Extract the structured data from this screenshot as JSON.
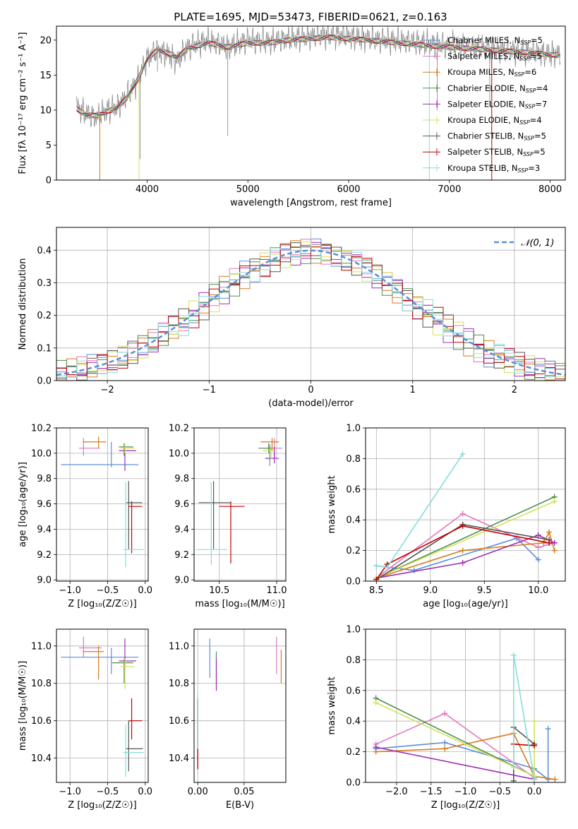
{
  "figure_title": "PLATE=1695, MJD=53473, FIBERID=0621, z=0.163",
  "models": [
    {
      "name": "Chabrier MILES",
      "nssp": "5",
      "color": "#5b8fd6"
    },
    {
      "name": "Salpeter MILES",
      "nssp": "5",
      "color": "#e377c2"
    },
    {
      "name": "Kroupa MILES",
      "nssp": "6",
      "color": "#d87a1e"
    },
    {
      "name": "Chabrier ELODIE",
      "nssp": "4",
      "color": "#4f8f4f"
    },
    {
      "name": "Salpeter ELODIE",
      "nssp": "7",
      "color": "#9b30b0"
    },
    {
      "name": "Kroupa ELODIE",
      "nssp": "4",
      "color": "#d4e15a"
    },
    {
      "name": "Chabrier STELIB",
      "nssp": "5",
      "color": "#555555"
    },
    {
      "name": "Salpeter STELIB",
      "nssp": "5",
      "color": "#c00000"
    },
    {
      "name": "Kroupa STELIB",
      "nssp": "3",
      "color": "#87dcdc"
    }
  ],
  "chart_data": [
    {
      "id": "spectrum",
      "type": "line",
      "xlabel": "wavelength [Angstrom, rest frame]",
      "ylabel": "Flux [fλ 10⁻¹⁷ erg cm⁻² s⁻¹ A⁻¹]",
      "xlim": [
        3100,
        8150
      ],
      "ylim": [
        0,
        22
      ],
      "xticks": [
        4000,
        5000,
        6000,
        7000,
        8000
      ],
      "yticks": [
        0,
        5,
        10,
        15,
        20
      ],
      "grid": false,
      "legend": "right",
      "observed": {
        "color": "#808080",
        "x": [
          3300,
          3400,
          3500,
          3600,
          3700,
          3800,
          3900,
          4000,
          4100,
          4200,
          4300,
          4400,
          4500,
          4600,
          4700,
          4800,
          4900,
          5000,
          5200,
          5400,
          5600,
          5800,
          6000,
          6200,
          6400,
          6600,
          6800,
          7000,
          7200,
          7400,
          7600,
          7800,
          8000,
          8100
        ],
        "y": [
          10.5,
          9.5,
          9.0,
          10.0,
          10.5,
          12.0,
          14.0,
          17.5,
          18.5,
          18.0,
          17.0,
          19.0,
          19.5,
          20.0,
          19.5,
          19.0,
          19.5,
          20.0,
          19.8,
          20.2,
          20.5,
          20.8,
          20.5,
          20.2,
          20.0,
          19.8,
          19.5,
          19.2,
          19.0,
          18.8,
          18.5,
          18.3,
          18.0,
          18.0
        ]
      },
      "model_curve": {
        "x": [
          3300,
          3400,
          3500,
          3600,
          3700,
          3800,
          3900,
          4000,
          4100,
          4200,
          4300,
          4400,
          4500,
          4600,
          4700,
          4800,
          4900,
          5000,
          5200,
          5400,
          5600,
          5800,
          6000,
          6200,
          6400,
          6600,
          6800,
          7000,
          7200,
          7400,
          7600,
          7800,
          8000,
          8100
        ],
        "y": [
          10.2,
          9.3,
          9.2,
          9.8,
          10.3,
          11.8,
          14.2,
          17.2,
          18.6,
          18.2,
          17.5,
          18.8,
          19.2,
          19.6,
          19.3,
          19.0,
          19.3,
          19.6,
          19.6,
          20.0,
          20.2,
          20.4,
          20.2,
          20.0,
          19.7,
          19.5,
          19.2,
          19.0,
          18.8,
          18.6,
          18.4,
          18.2,
          17.9,
          17.9
        ]
      }
    },
    {
      "id": "residuals",
      "type": "line",
      "xlabel": "(data-model)/error",
      "ylabel": "Normed distribution",
      "xlim": [
        -2.5,
        2.5
      ],
      "ylim": [
        0,
        0.47
      ],
      "xticks": [
        -2,
        -1,
        0,
        1,
        2
      ],
      "yticks": [
        0.0,
        0.1,
        0.2,
        0.3,
        0.4
      ],
      "grid": true,
      "legend": "top-right",
      "reference": {
        "label": "𝒩(0, 1)",
        "mean": 0,
        "sigma": 1,
        "color": "#5b8fd6",
        "style": "dashed"
      },
      "bin_width": 0.1
    },
    {
      "id": "age_vs_Z",
      "type": "scatter",
      "xlabel": "Z [log₁₀(Z/Z☉)]",
      "ylabel": "age  [log₁₀(age/yr)]",
      "xlim": [
        -1.18,
        0.04
      ],
      "ylim": [
        8.99,
        10.2
      ],
      "xticks": [
        -1.0,
        -0.5,
        0.0
      ],
      "yticks": [
        9.0,
        9.2,
        9.4,
        9.6,
        9.8,
        10.0,
        10.2
      ],
      "grid": true,
      "points": [
        {
          "x": -0.45,
          "y": 9.91,
          "xlo": -1.12,
          "xhi": -0.09,
          "ylo": 9.89,
          "yhi": 10.09
        },
        {
          "x": -0.82,
          "y": 10.04,
          "xlo": -0.88,
          "xhi": -0.6,
          "ylo": 9.98,
          "yhi": 10.12
        },
        {
          "x": -0.62,
          "y": 10.09,
          "xlo": -0.83,
          "xhi": -0.52,
          "ylo": 10.04,
          "yhi": 10.13
        },
        {
          "x": -0.28,
          "y": 10.05,
          "xlo": -0.35,
          "xhi": -0.16,
          "ylo": 9.98,
          "yhi": 10.08
        },
        {
          "x": -0.27,
          "y": 10.02,
          "xlo": -0.35,
          "xhi": -0.12,
          "ylo": 9.86,
          "yhi": 10.04
        },
        {
          "x": -0.27,
          "y": 10.04,
          "xlo": -0.33,
          "xhi": -0.14,
          "ylo": 10.0,
          "yhi": 10.07
        },
        {
          "x": -0.22,
          "y": 9.61,
          "xlo": -0.25,
          "xhi": -0.04,
          "ylo": 9.24,
          "yhi": 9.78
        },
        {
          "x": -0.18,
          "y": 9.58,
          "xlo": -0.22,
          "xhi": -0.04,
          "ylo": 9.21,
          "yhi": 9.62
        },
        {
          "x": -0.26,
          "y": 9.24,
          "xlo": -0.29,
          "xhi": -0.02,
          "ylo": 9.1,
          "yhi": 9.77
        }
      ]
    },
    {
      "id": "age_vs_mass",
      "type": "scatter",
      "xlabel": "mass [log₁₀(M/M☉)]",
      "ylabel": "",
      "xlim": [
        10.28,
        11.08
      ],
      "ylim": [
        8.99,
        10.2
      ],
      "xticks": [
        10.5,
        11.0
      ],
      "yticks": [
        9.0,
        9.2,
        9.4,
        9.6,
        9.8,
        10.0,
        10.2
      ],
      "grid": true,
      "points": [
        {
          "x": 10.94,
          "y": 9.96,
          "xlo": 10.9,
          "xhi": 10.98,
          "ylo": 9.9,
          "yhi": 10.07
        },
        {
          "x": 10.98,
          "y": 10.04,
          "xlo": 10.88,
          "xhi": 11.05,
          "ylo": 9.96,
          "yhi": 10.12
        },
        {
          "x": 10.96,
          "y": 10.09,
          "xlo": 10.86,
          "xhi": 11.02,
          "ylo": 10.02,
          "yhi": 10.12
        },
        {
          "x": 10.93,
          "y": 10.04,
          "xlo": 10.84,
          "xhi": 10.96,
          "ylo": 10.0,
          "yhi": 10.08
        },
        {
          "x": 10.98,
          "y": 9.96,
          "xlo": 10.9,
          "xhi": 11.02,
          "ylo": 9.92,
          "yhi": 10.05
        },
        {
          "x": 10.95,
          "y": 10.02,
          "xlo": 10.88,
          "xhi": 10.98,
          "ylo": 9.95,
          "yhi": 10.05
        },
        {
          "x": 10.45,
          "y": 9.61,
          "xlo": 10.32,
          "xhi": 10.6,
          "ylo": 9.24,
          "yhi": 9.78
        },
        {
          "x": 10.6,
          "y": 9.58,
          "xlo": 10.5,
          "xhi": 10.72,
          "ylo": 9.13,
          "yhi": 9.62
        },
        {
          "x": 10.43,
          "y": 9.24,
          "xlo": 10.3,
          "xhi": 10.57,
          "ylo": 9.12,
          "yhi": 9.77
        }
      ]
    },
    {
      "id": "mass_weight_vs_age",
      "type": "line",
      "xlabel": "age  [log₁₀(age/yr)]",
      "ylabel": "mass weight",
      "xlim": [
        8.4,
        10.25
      ],
      "ylim": [
        0,
        1.0
      ],
      "xticks": [
        8.5,
        9.0,
        9.5,
        10.0
      ],
      "yticks": [
        0.0,
        0.2,
        0.4,
        0.6,
        0.8,
        1.0
      ],
      "grid": true,
      "series": [
        {
          "x": [
            8.5,
            8.85,
            9.8,
            10.0
          ],
          "y": [
            0.1,
            0.07,
            0.28,
            0.14
          ]
        },
        {
          "x": [
            8.5,
            9.3,
            10.0,
            10.15
          ],
          "y": [
            0.02,
            0.44,
            0.22,
            0.25
          ]
        },
        {
          "x": [
            8.5,
            9.3,
            10.05,
            10.1,
            10.15
          ],
          "y": [
            0.02,
            0.2,
            0.25,
            0.32,
            0.2
          ]
        },
        {
          "x": [
            8.5,
            10.15
          ],
          "y": [
            0.02,
            0.55
          ]
        },
        {
          "x": [
            8.5,
            9.3,
            10.0,
            10.15
          ],
          "y": [
            0.02,
            0.12,
            0.3,
            0.25
          ]
        },
        {
          "x": [
            8.5,
            10.15
          ],
          "y": [
            0.02,
            0.52
          ]
        },
        {
          "x": [
            8.5,
            9.3,
            10.1
          ],
          "y": [
            0.01,
            0.37,
            0.27
          ]
        },
        {
          "x": [
            8.5,
            8.6,
            9.3,
            10.1
          ],
          "y": [
            0.01,
            0.11,
            0.36,
            0.25
          ]
        },
        {
          "x": [
            8.5,
            8.6,
            9.3
          ],
          "y": [
            0.1,
            0.09,
            0.83
          ]
        }
      ]
    },
    {
      "id": "mass_vs_Z",
      "type": "scatter",
      "xlabel": "Z [log₁₀(Z/Z☉)]",
      "ylabel": "mass [log₁₀(M/M☉)]",
      "xlim": [
        -1.18,
        0.04
      ],
      "ylim": [
        10.27,
        11.09
      ],
      "xticks": [
        -1.0,
        -0.5,
        0.0
      ],
      "yticks": [
        10.4,
        10.6,
        10.8,
        11.0
      ],
      "grid": true,
      "points": [
        {
          "x": -0.45,
          "y": 10.94,
          "xlo": -1.12,
          "xhi": -0.09,
          "ylo": 10.85,
          "yhi": 10.99
        },
        {
          "x": -0.82,
          "y": 10.99,
          "xlo": -0.88,
          "xhi": -0.58,
          "ylo": 10.94,
          "yhi": 11.05
        },
        {
          "x": -0.62,
          "y": 10.97,
          "xlo": -0.83,
          "xhi": -0.55,
          "ylo": 10.82,
          "yhi": 11.0
        },
        {
          "x": -0.28,
          "y": 10.91,
          "xlo": -0.44,
          "xhi": -0.16,
          "ylo": 10.8,
          "yhi": 10.93
        },
        {
          "x": -0.27,
          "y": 10.92,
          "xlo": -0.35,
          "xhi": -0.12,
          "ylo": 10.87,
          "yhi": 11.04
        },
        {
          "x": -0.27,
          "y": 10.89,
          "xlo": -0.33,
          "xhi": -0.14,
          "ylo": 10.77,
          "yhi": 10.93
        },
        {
          "x": -0.22,
          "y": 10.45,
          "xlo": -0.25,
          "xhi": -0.03,
          "ylo": 10.33,
          "yhi": 10.6
        },
        {
          "x": -0.18,
          "y": 10.6,
          "xlo": -0.22,
          "xhi": -0.04,
          "ylo": 10.5,
          "yhi": 10.72
        },
        {
          "x": -0.26,
          "y": 10.43,
          "xlo": -0.29,
          "xhi": -0.02,
          "ylo": 10.3,
          "yhi": 10.58
        }
      ]
    },
    {
      "id": "mass_vs_ebv",
      "type": "scatter",
      "xlabel": "E(B-V)",
      "ylabel": "",
      "xlim": [
        -0.004,
        0.095
      ],
      "ylim": [
        10.27,
        11.09
      ],
      "xticks": [
        0.0,
        0.05
      ],
      "yticks": [
        10.4,
        10.6,
        10.8,
        11.0
      ],
      "grid": true,
      "points": [
        {
          "x": 0.013,
          "y": 10.93,
          "xlo": 0.013,
          "xhi": 0.013,
          "ylo": 10.83,
          "yhi": 11.04
        },
        {
          "x": 0.085,
          "y": 10.95,
          "xlo": 0.085,
          "xhi": 0.085,
          "ylo": 10.85,
          "yhi": 11.05
        },
        {
          "x": 0.09,
          "y": 10.9,
          "xlo": 0.09,
          "xhi": 0.09,
          "ylo": 10.8,
          "yhi": 10.98
        },
        {
          "x": 0.02,
          "y": 10.9,
          "xlo": 0.02,
          "xhi": 0.02,
          "ylo": 10.8,
          "yhi": 10.97
        },
        {
          "x": 0.02,
          "y": 10.87,
          "xlo": 0.02,
          "xhi": 0.02,
          "ylo": 10.76,
          "yhi": 10.93
        },
        {
          "x": 0.0,
          "y": 10.55,
          "xlo": 0.0,
          "xhi": 0.0,
          "ylo": 10.4,
          "yhi": 10.7
        },
        {
          "x": 0.0,
          "y": 10.5,
          "xlo": 0.0,
          "xhi": 0.0,
          "ylo": 10.35,
          "yhi": 10.7
        },
        {
          "x": 0.0,
          "y": 10.5,
          "xlo": 0.0,
          "xhi": 0.0,
          "ylo": 10.34,
          "yhi": 10.72
        },
        {
          "x": 0.0,
          "y": 10.6,
          "xlo": 0.0,
          "xhi": 0.0,
          "ylo": 10.45,
          "yhi": 10.75
        }
      ]
    },
    {
      "id": "mass_weight_vs_Z",
      "type": "line",
      "xlabel": "Z [log₁₀(Z/Z☉)]",
      "ylabel": "mass weight",
      "xlim": [
        -2.45,
        0.45
      ],
      "ylim": [
        0,
        1.0
      ],
      "xticks": [
        -2.0,
        -1.5,
        -1.0,
        -0.5,
        0.0
      ],
      "yticks": [
        0.0,
        0.2,
        0.4,
        0.6,
        0.8,
        1.0
      ],
      "grid": true,
      "series": [
        {
          "x": [
            -2.3,
            -1.3,
            0.0,
            0.2,
            0.2
          ],
          "y": [
            0.22,
            0.26,
            0.09,
            0.02,
            0.35
          ]
        },
        {
          "x": [
            -2.3,
            -1.3,
            0.0
          ],
          "y": [
            0.25,
            0.45,
            0.03
          ]
        },
        {
          "x": [
            -2.3,
            -1.3,
            -0.3,
            0.0,
            0.3
          ],
          "y": [
            0.2,
            0.22,
            0.32,
            0.04,
            0.02
          ]
        },
        {
          "x": [
            -2.3,
            0.0
          ],
          "y": [
            0.55,
            0.04
          ]
        },
        {
          "x": [
            -2.3,
            0.0
          ],
          "y": [
            0.23,
            0.02
          ]
        },
        {
          "x": [
            -2.3,
            0.0,
            0.0
          ],
          "y": [
            0.52,
            0.04,
            0.4
          ]
        },
        {
          "x": [
            -0.3,
            -0.3,
            0.0
          ],
          "y": [
            0.01,
            0.36,
            0.25
          ]
        },
        {
          "x": [
            -0.3,
            0.0
          ],
          "y": [
            0.25,
            0.24
          ]
        },
        {
          "x": [
            -0.3,
            -0.3,
            0.0
          ],
          "y": [
            0.1,
            0.83,
            0.02
          ]
        }
      ]
    }
  ]
}
